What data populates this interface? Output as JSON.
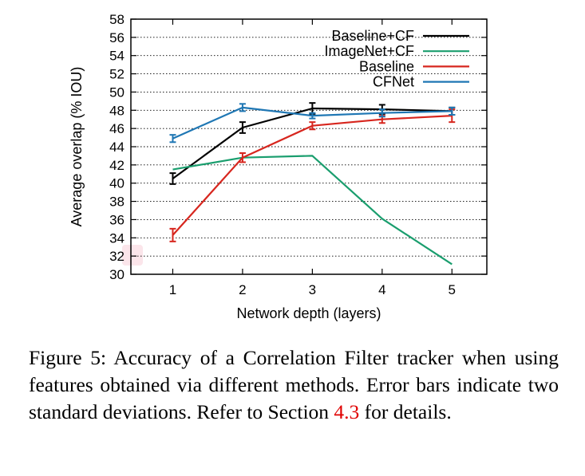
{
  "chart_data": {
    "type": "line",
    "xlabel": "Network depth (layers)",
    "ylabel": "Average overlap (% IOU)",
    "x": [
      1,
      2,
      3,
      4,
      5
    ],
    "xlim": [
      0.4,
      5.5
    ],
    "ylim": [
      30,
      58
    ],
    "x_ticks": [
      1,
      2,
      3,
      4,
      5
    ],
    "y_ticks": [
      30,
      32,
      34,
      36,
      38,
      40,
      42,
      44,
      46,
      48,
      50,
      52,
      54,
      56,
      58
    ],
    "grid": "horizontal dotted",
    "legend_position": "top-right",
    "series": [
      {
        "name": "Baseline+CF",
        "color": "#000000",
        "values": [
          40.5,
          46.1,
          48.2,
          48.1,
          47.9
        ],
        "error": [
          0.6,
          0.6,
          0.6,
          0.5,
          0.4
        ]
      },
      {
        "name": "ImageNet+CF",
        "color": "#1a9e6e",
        "values": [
          41.5,
          42.8,
          43.0,
          36.1,
          31.1
        ],
        "error": null
      },
      {
        "name": "Baseline",
        "color": "#d7261e",
        "values": [
          34.3,
          42.8,
          46.3,
          47.0,
          47.4
        ],
        "error": [
          0.7,
          0.5,
          0.4,
          0.4,
          0.7
        ]
      },
      {
        "name": "CFNet",
        "color": "#1f77b4",
        "values": [
          44.9,
          48.3,
          47.4,
          47.7,
          47.9
        ],
        "error": [
          0.4,
          0.4,
          0.3,
          0.4,
          0.4
        ]
      }
    ]
  },
  "caption": {
    "text": "Figure 5: Accuracy of a Correlation Filter tracker when using features obtained via different methods. Error bars indicate two standard deviations. Refer to Section ",
    "ref": "4.3",
    "text_end": " for details."
  }
}
